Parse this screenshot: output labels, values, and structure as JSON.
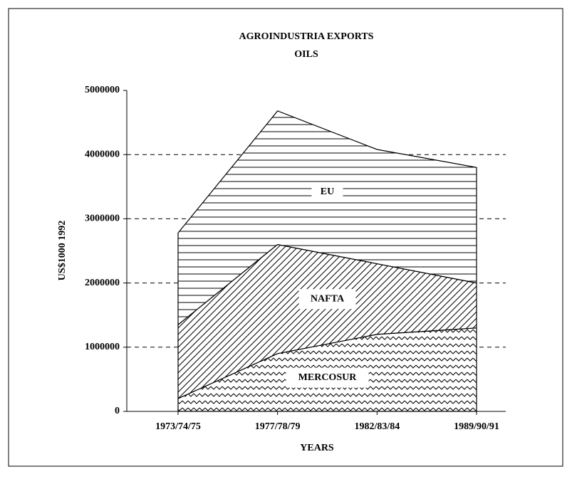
{
  "chart_data": {
    "type": "stacked_area",
    "title": "AGROINDUSTRIA EXPORTS",
    "subtitle": "OILS",
    "x_label": "YEARS",
    "y_label": "US$1000  1992",
    "categories": [
      "1973/74/75",
      "1977/78/79",
      "1982/83/84",
      "1989/90/91"
    ],
    "series": [
      {
        "name": "MERCOSUR",
        "color": "#000000",
        "pattern": "zigzag",
        "values": [
          200000,
          900000,
          1200000,
          1300000
        ]
      },
      {
        "name": "NAFTA",
        "color": "#000000",
        "pattern": "diagonal",
        "values": [
          1150000,
          1700000,
          1100000,
          700000
        ]
      },
      {
        "name": "EU",
        "color": "#000000",
        "pattern": "horizontal",
        "values": [
          1430000,
          2080000,
          1780000,
          1800000
        ]
      }
    ],
    "ylim": [
      0,
      5000000
    ],
    "yticks": [
      0,
      1000000,
      2000000,
      3000000,
      4000000,
      5000000
    ],
    "grid": true
  }
}
